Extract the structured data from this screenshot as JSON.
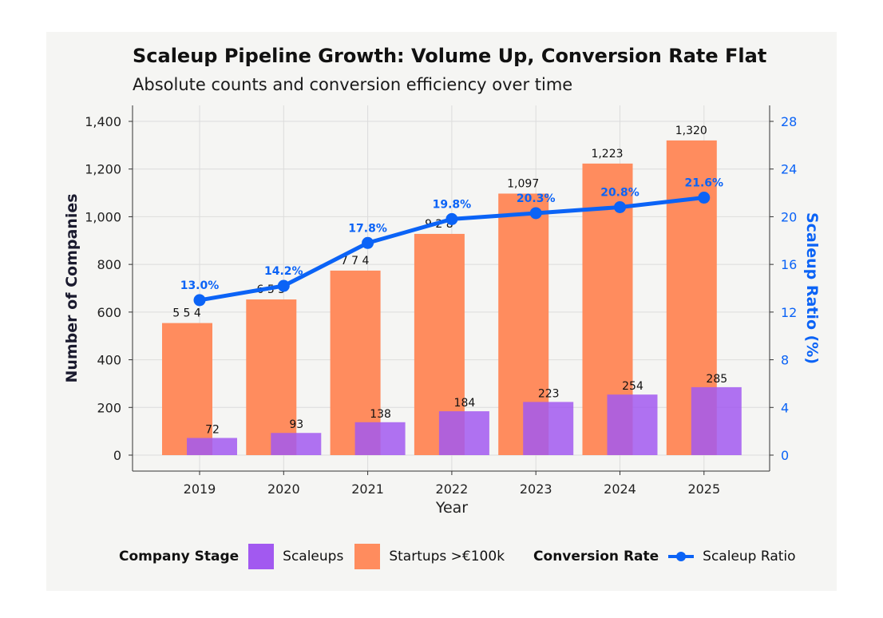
{
  "chart_data": {
    "type": "bar",
    "title": "Scaleup Pipeline Growth: Volume Up, Conversion Rate Flat",
    "subtitle": "Absolute counts and conversion efficiency over time",
    "xlabel": "Year",
    "ylabel": "Number of Companies",
    "y2label": "Scaleup Ratio (%)",
    "categories": [
      "2019",
      "2020",
      "2021",
      "2022",
      "2023",
      "2024",
      "2025"
    ],
    "ylim": [
      0,
      1400
    ],
    "y2lim": [
      0,
      28
    ],
    "yticks": [
      0,
      200,
      400,
      600,
      800,
      1000,
      1200,
      1400
    ],
    "ytick_labels": [
      "0",
      "200",
      "400",
      "600",
      "800",
      "1,000",
      "1,200",
      "1,400"
    ],
    "y2ticks": [
      0,
      4,
      8,
      12,
      16,
      20,
      24,
      28
    ],
    "y2tick_labels": [
      "0",
      "4",
      "8",
      "12",
      "16",
      "20",
      "24",
      "28"
    ],
    "grid": true,
    "legend_position": "bottom",
    "series": [
      {
        "name": "Startups >€100k",
        "type": "bar",
        "color": "#ff8c5e",
        "values": [
          554,
          653,
          774,
          928,
          1097,
          1223,
          1320
        ],
        "labels": [
          "5 5 4",
          "6 5 3",
          "7 7 4",
          "9 2 8",
          "1,097",
          "1,223",
          "1,320"
        ]
      },
      {
        "name": "Scaleups",
        "type": "bar",
        "color": "#a259f0",
        "values": [
          72,
          93,
          138,
          184,
          223,
          254,
          285
        ],
        "labels": [
          "72",
          "93",
          "138",
          "184",
          "223",
          "254",
          "285"
        ]
      },
      {
        "name": "Scaleup Ratio",
        "type": "line",
        "axis": "right",
        "color": "#0b63f6",
        "values": [
          13.0,
          14.2,
          17.8,
          19.8,
          20.3,
          20.8,
          21.6
        ],
        "labels": [
          "13.0%",
          "14.2%",
          "17.8%",
          "19.8%",
          "20.3%",
          "20.8%",
          "21.6%"
        ]
      }
    ],
    "legend": {
      "group1_title": "Company Stage",
      "group2_title": "Conversion Rate"
    }
  }
}
